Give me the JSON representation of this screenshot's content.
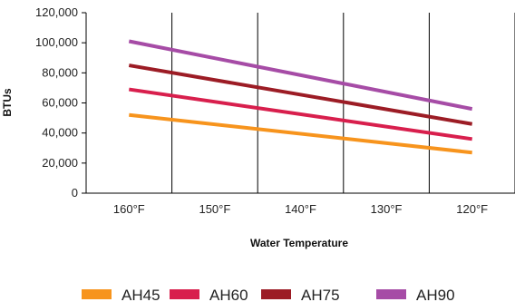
{
  "chart_data": {
    "type": "line",
    "title": "",
    "xlabel": "Water Temperature",
    "ylabel": "BTUs",
    "categories": [
      "160°F",
      "150°F",
      "140°F",
      "130°F",
      "120°F"
    ],
    "x_range": [
      160,
      120
    ],
    "ylim": [
      0,
      120000
    ],
    "yticks": [
      0,
      20000,
      40000,
      60000,
      80000,
      100000,
      120000
    ],
    "ytick_labels": [
      "0",
      "20,000",
      "40,000",
      "60,000",
      "80,000",
      "100,000",
      "120,000"
    ],
    "grid": "vertical lines at each temperature category",
    "legend_position": "bottom",
    "series": [
      {
        "name": "AH45",
        "color": "#f7941d",
        "x": [
          160,
          120
        ],
        "values": [
          52000,
          27000
        ]
      },
      {
        "name": "AH60",
        "color": "#d81f4d",
        "x": [
          160,
          120
        ],
        "values": [
          69000,
          36000
        ]
      },
      {
        "name": "AH75",
        "color": "#9c1c25",
        "x": [
          160,
          120
        ],
        "values": [
          85000,
          46000
        ]
      },
      {
        "name": "AH90",
        "color": "#a64ca6",
        "x": [
          160,
          120
        ],
        "values": [
          101000,
          56000
        ]
      }
    ]
  }
}
